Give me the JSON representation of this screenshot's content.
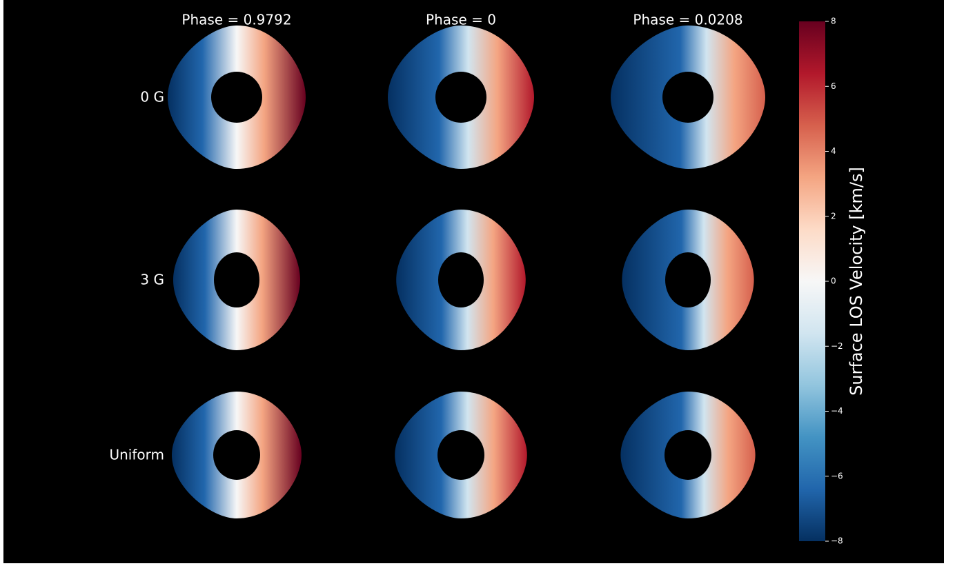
{
  "chart_data": {
    "type": "colormap-grid",
    "column_titles": [
      "Phase = 0.9792",
      "Phase = 0",
      "Phase = 0.0208"
    ],
    "row_labels": [
      "0 G",
      "3 G",
      "Uniform"
    ],
    "colorbar": {
      "label": "Surface LOS Velocity [km/s]",
      "lim": [
        -8,
        8
      ],
      "ticks": [
        {
          "value": -8,
          "label": "−8"
        },
        {
          "value": -6,
          "label": "−6"
        },
        {
          "value": -4,
          "label": "−4"
        },
        {
          "value": -2,
          "label": "−2"
        },
        0,
        2,
        4,
        6,
        8
      ],
      "colormap": "RdBu_r",
      "colors": [
        "#053061",
        "#2166ac",
        "#4393c3",
        "#92c5de",
        "#d1e5f0",
        "#f7f7f7",
        "#fddbc7",
        "#f4a582",
        "#d6604d",
        "#b2182b",
        "#67001f"
      ]
    }
  }
}
